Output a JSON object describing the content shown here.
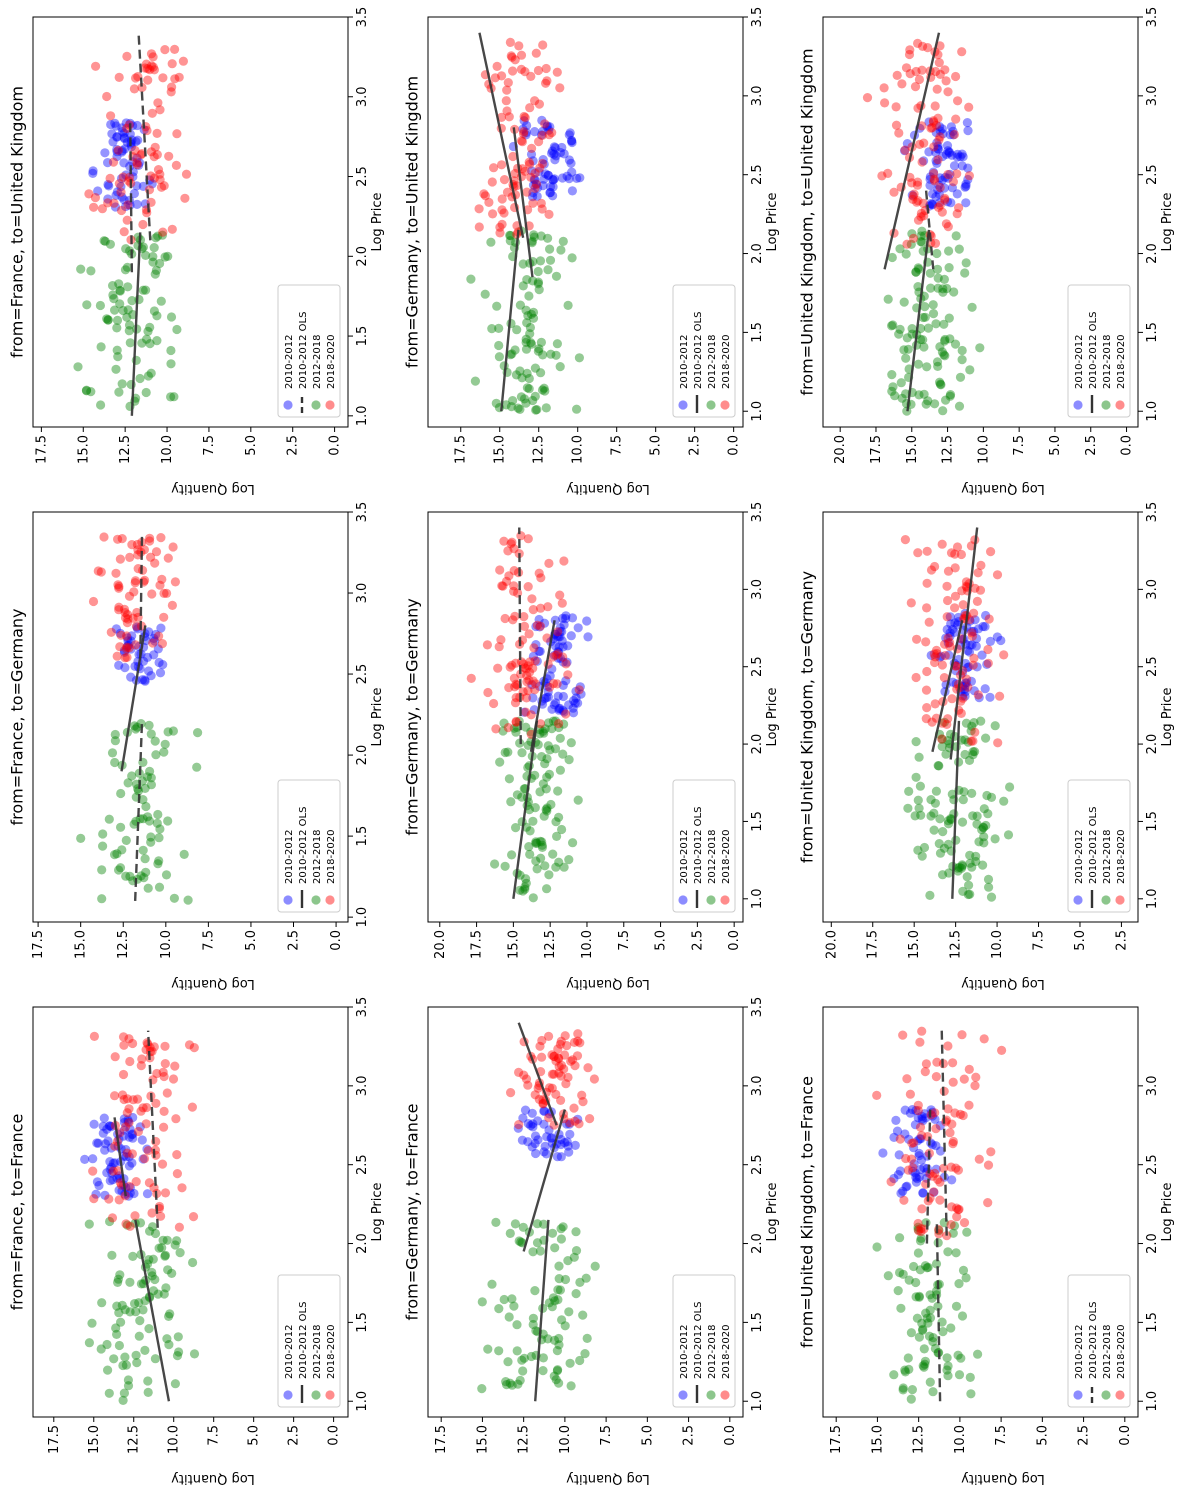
{
  "figure": {
    "rotation": "90 degrees clockwise",
    "shared": {
      "xlabel": "Log Price",
      "ylabel": "Log Quantity",
      "legend_entries": [
        "2010-2012",
        "2010-2012 OLS",
        "2012-2018",
        "2018-2020"
      ],
      "colors": {
        "2010-2012": "#0000ff",
        "2012-2018": "#008000",
        "2018-2020": "#ff0000",
        "ols": "#333333"
      }
    }
  },
  "chart_data": [
    {
      "type": "scatter",
      "title": "from=France, to=France",
      "x_ticks": [
        "1.0",
        "1.5",
        "2.0",
        "2.5",
        "3.0",
        "3.5"
      ],
      "xlim": [
        0.9,
        3.5
      ],
      "y_ticks": [
        "0.0",
        "2.5",
        "5.0",
        "7.5",
        "10.0",
        "12.5",
        "15.0",
        "17.5"
      ],
      "ylim": [
        -0.9,
        18.8
      ],
      "clusters": [
        {
          "series": "2012-2018",
          "x_range": [
            1.0,
            2.15
          ],
          "y_center": 12.0,
          "y_spread": 2.6,
          "n": 90
        },
        {
          "series": "2010-2012",
          "x_range": [
            2.3,
            2.8
          ],
          "y_center": 13.5,
          "y_spread": 1.6,
          "n": 70
        },
        {
          "series": "2018-2020",
          "x_range": [
            2.1,
            3.35
          ],
          "y_center": 12.0,
          "y_spread": 2.6,
          "n": 90
        }
      ],
      "ols": [
        {
          "style": "solid",
          "from": [
            1.0,
            10.3
          ],
          "to": [
            2.15,
            12.4
          ]
        },
        {
          "style": "solid",
          "from": [
            2.3,
            13.0
          ],
          "to": [
            2.8,
            13.7
          ]
        },
        {
          "style": "dashed",
          "from": [
            2.1,
            11.0
          ],
          "to": [
            3.35,
            11.6
          ]
        }
      ],
      "legend_line": "solid"
    },
    {
      "type": "scatter",
      "title": "from=France, to=Germany",
      "x_ticks": [
        "1.0",
        "1.5",
        "2.0",
        "2.5",
        "3.0",
        "3.5"
      ],
      "xlim": [
        0.97,
        3.5
      ],
      "y_ticks": [
        "0.0",
        "2.5",
        "5.0",
        "7.5",
        "10.0",
        "12.5",
        "15.0",
        "17.5"
      ],
      "ylim": [
        -0.7,
        17.8
      ],
      "clusters": [
        {
          "series": "2012-2018",
          "x_range": [
            1.1,
            2.2
          ],
          "y_center": 11.5,
          "y_spread": 2.4,
          "n": 80
        },
        {
          "series": "2010-2012",
          "x_range": [
            2.45,
            2.8
          ],
          "y_center": 11.5,
          "y_spread": 1.4,
          "n": 45
        },
        {
          "series": "2018-2020",
          "x_range": [
            2.6,
            3.35
          ],
          "y_center": 11.8,
          "y_spread": 2.0,
          "n": 70
        }
      ],
      "ols": [
        {
          "style": "dashed",
          "from": [
            1.1,
            11.8
          ],
          "to": [
            2.2,
            11.4
          ]
        },
        {
          "style": "solid",
          "from": [
            1.9,
            12.6
          ],
          "to": [
            2.8,
            11.2
          ]
        },
        {
          "style": "dashed",
          "from": [
            2.6,
            11.5
          ],
          "to": [
            3.35,
            11.4
          ]
        }
      ],
      "legend_line": "solid"
    },
    {
      "type": "scatter",
      "title": "from=France, to=United Kingdom",
      "x_ticks": [
        "1.0",
        "1.5",
        "2.0",
        "2.5",
        "3.0",
        "3.5"
      ],
      "xlim": [
        0.93,
        3.5
      ],
      "y_ticks": [
        "0.0",
        "2.5",
        "5.0",
        "7.5",
        "10.0",
        "12.5",
        "15.0",
        "17.5"
      ],
      "ylim": [
        -0.8,
        18.0
      ],
      "clusters": [
        {
          "series": "2012-2018",
          "x_range": [
            1.05,
            2.15
          ],
          "y_center": 11.8,
          "y_spread": 2.6,
          "n": 90
        },
        {
          "series": "2010-2012",
          "x_range": [
            2.3,
            2.85
          ],
          "y_center": 12.5,
          "y_spread": 1.4,
          "n": 65
        },
        {
          "series": "2018-2020",
          "x_range": [
            2.1,
            3.3
          ],
          "y_center": 11.5,
          "y_spread": 2.6,
          "n": 85
        }
      ],
      "ols": [
        {
          "style": "solid",
          "from": [
            1.0,
            12.1
          ],
          "to": [
            2.15,
            11.6
          ]
        },
        {
          "style": "dashed",
          "from": [
            1.9,
            12.1
          ],
          "to": [
            2.85,
            12.2
          ]
        },
        {
          "style": "dashed",
          "from": [
            2.1,
            11.0
          ],
          "to": [
            3.4,
            11.7
          ]
        }
      ],
      "legend_line": "dashed"
    },
    {
      "type": "scatter",
      "title": "from=Germany, to=France",
      "x_ticks": [
        "1.0",
        "1.5",
        "2.0",
        "2.5",
        "3.0",
        "3.5"
      ],
      "xlim": [
        0.9,
        3.5
      ],
      "y_ticks": [
        "0.0",
        "2.5",
        "5.0",
        "7.5",
        "10.0",
        "12.5",
        "15.0",
        "17.5"
      ],
      "ylim": [
        -0.8,
        18.3
      ],
      "clusters": [
        {
          "series": "2012-2018",
          "x_range": [
            1.05,
            2.15
          ],
          "y_center": 11.5,
          "y_spread": 2.6,
          "n": 90
        },
        {
          "series": "2010-2012",
          "x_range": [
            2.55,
            2.85
          ],
          "y_center": 11.0,
          "y_spread": 1.6,
          "n": 45
        },
        {
          "series": "2018-2020",
          "x_range": [
            2.75,
            3.35
          ],
          "y_center": 10.8,
          "y_spread": 2.0,
          "n": 70
        }
      ],
      "ols": [
        {
          "style": "solid",
          "from": [
            1.0,
            11.8
          ],
          "to": [
            2.15,
            11.0
          ]
        },
        {
          "style": "solid",
          "from": [
            1.95,
            12.5
          ],
          "to": [
            2.85,
            10.0
          ]
        },
        {
          "style": "solid",
          "from": [
            2.75,
            10.5
          ],
          "to": [
            3.4,
            12.8
          ]
        }
      ],
      "legend_line": "solid"
    },
    {
      "type": "scatter",
      "title": "from=Germany, to=Germany",
      "x_ticks": [
        "1.0",
        "1.5",
        "2.0",
        "2.5",
        "3.0",
        "3.5"
      ],
      "xlim": [
        0.85,
        3.5
      ],
      "y_ticks": [
        "0.0",
        "2.5",
        "5.0",
        "7.5",
        "10.0",
        "12.5",
        "15.0",
        "17.5",
        "20.0"
      ],
      "ylim": [
        -0.6,
        20.8
      ],
      "clusters": [
        {
          "series": "2012-2018",
          "x_range": [
            1.0,
            2.15
          ],
          "y_center": 13.5,
          "y_spread": 2.6,
          "n": 110
        },
        {
          "series": "2010-2012",
          "x_range": [
            2.2,
            2.85
          ],
          "y_center": 12.0,
          "y_spread": 1.8,
          "n": 80
        },
        {
          "series": "2018-2020",
          "x_range": [
            2.05,
            3.35
          ],
          "y_center": 14.0,
          "y_spread": 2.4,
          "n": 100
        }
      ],
      "ols": [
        {
          "style": "solid",
          "from": [
            1.0,
            15.0
          ],
          "to": [
            2.15,
            13.4
          ]
        },
        {
          "style": "solid",
          "from": [
            1.95,
            13.8
          ],
          "to": [
            2.8,
            12.2
          ]
        },
        {
          "style": "dashed",
          "from": [
            2.0,
            14.5
          ],
          "to": [
            3.4,
            14.6
          ]
        }
      ],
      "legend_line": "solid"
    },
    {
      "type": "scatter",
      "title": "from=Germany, to=United Kingdom",
      "x_ticks": [
        "1.0",
        "1.5",
        "2.0",
        "2.5",
        "3.0",
        "3.5"
      ],
      "xlim": [
        0.9,
        3.5
      ],
      "y_ticks": [
        "0.0",
        "2.5",
        "5.0",
        "7.5",
        "10.0",
        "12.5",
        "15.0",
        "17.5"
      ],
      "ylim": [
        -0.6,
        19.6
      ],
      "clusters": [
        {
          "series": "2012-2018",
          "x_range": [
            1.0,
            2.15
          ],
          "y_center": 13.2,
          "y_spread": 2.4,
          "n": 100
        },
        {
          "series": "2010-2012",
          "x_range": [
            2.35,
            2.85
          ],
          "y_center": 12.0,
          "y_spread": 1.6,
          "n": 65
        },
        {
          "series": "2018-2020",
          "x_range": [
            2.1,
            3.35
          ],
          "y_center": 14.0,
          "y_spread": 2.2,
          "n": 95
        }
      ],
      "ols": [
        {
          "style": "solid",
          "from": [
            1.0,
            14.9
          ],
          "to": [
            2.15,
            13.8
          ]
        },
        {
          "style": "solid",
          "from": [
            1.85,
            12.9
          ],
          "to": [
            2.8,
            14.1
          ]
        },
        {
          "style": "solid",
          "from": [
            2.1,
            13.5
          ],
          "to": [
            3.4,
            16.3
          ]
        }
      ],
      "legend_line": "solid"
    },
    {
      "type": "scatter",
      "title": "from=United Kingdom, to=France",
      "x_ticks": [
        "1.0",
        "1.5",
        "2.0",
        "2.5",
        "3.0"
      ],
      "xlim": [
        0.9,
        3.5
      ],
      "y_ticks": [
        "0.0",
        "2.5",
        "5.0",
        "7.5",
        "10.0",
        "12.5",
        "15.0",
        "17.5"
      ],
      "ylim": [
        -0.8,
        18.3
      ],
      "clusters": [
        {
          "series": "2012-2018",
          "x_range": [
            1.0,
            2.15
          ],
          "y_center": 11.5,
          "y_spread": 2.6,
          "n": 90
        },
        {
          "series": "2010-2012",
          "x_range": [
            2.3,
            2.85
          ],
          "y_center": 12.5,
          "y_spread": 1.4,
          "n": 60
        },
        {
          "series": "2018-2020",
          "x_range": [
            2.05,
            3.35
          ],
          "y_center": 11.0,
          "y_spread": 2.6,
          "n": 85
        }
      ],
      "ols": [
        {
          "style": "dashed",
          "from": [
            1.0,
            11.2
          ],
          "to": [
            2.15,
            11.4
          ]
        },
        {
          "style": "dashed",
          "from": [
            2.0,
            12.0
          ],
          "to": [
            2.85,
            11.8
          ]
        },
        {
          "style": "dashed",
          "from": [
            2.05,
            10.8
          ],
          "to": [
            3.35,
            11.1
          ]
        }
      ],
      "legend_line": "dashed"
    },
    {
      "type": "scatter",
      "title": "from=United Kingdom, to=Germany",
      "x_ticks": [
        "1.0",
        "1.5",
        "2.0",
        "2.5",
        "3.0",
        "3.5"
      ],
      "xlim": [
        0.85,
        3.5
      ],
      "y_ticks": [
        "2.5",
        "5.0",
        "7.5",
        "10.0",
        "12.5",
        "15.0",
        "17.5",
        "20.0"
      ],
      "ylim": [
        1.5,
        20.5
      ],
      "clusters": [
        {
          "series": "2012-2018",
          "x_range": [
            1.0,
            2.15
          ],
          "y_center": 12.5,
          "y_spread": 2.6,
          "n": 110
        },
        {
          "series": "2010-2012",
          "x_range": [
            2.3,
            2.85
          ],
          "y_center": 12.0,
          "y_spread": 1.6,
          "n": 70
        },
        {
          "series": "2018-2020",
          "x_range": [
            2.0,
            3.35
          ],
          "y_center": 12.5,
          "y_spread": 2.4,
          "n": 100
        }
      ],
      "ols": [
        {
          "style": "solid",
          "from": [
            1.0,
            12.7
          ],
          "to": [
            2.15,
            12.3
          ]
        },
        {
          "style": "solid",
          "from": [
            1.95,
            13.9
          ],
          "to": [
            2.8,
            12.1
          ]
        },
        {
          "style": "solid",
          "from": [
            1.9,
            12.8
          ],
          "to": [
            3.4,
            11.2
          ]
        }
      ],
      "legend_line": "solid"
    },
    {
      "type": "scatter",
      "title": "from=United Kingdom, to=United Kingdom",
      "x_ticks": [
        "1.0",
        "1.5",
        "2.0",
        "2.5",
        "3.0",
        "3.5"
      ],
      "xlim": [
        0.9,
        3.5
      ],
      "y_ticks": [
        "0.0",
        "2.5",
        "5.0",
        "7.5",
        "10.0",
        "12.5",
        "15.0",
        "17.5",
        "20.0"
      ],
      "ylim": [
        -0.8,
        21.2
      ],
      "clusters": [
        {
          "series": "2012-2018",
          "x_range": [
            1.0,
            2.15
          ],
          "y_center": 14.0,
          "y_spread": 2.6,
          "n": 110
        },
        {
          "series": "2010-2012",
          "x_range": [
            2.3,
            2.85
          ],
          "y_center": 12.8,
          "y_spread": 1.8,
          "n": 70
        },
        {
          "series": "2018-2020",
          "x_range": [
            2.05,
            3.35
          ],
          "y_center": 14.0,
          "y_spread": 2.6,
          "n": 100
        }
      ],
      "ols": [
        {
          "style": "solid",
          "from": [
            1.0,
            15.3
          ],
          "to": [
            2.15,
            13.8
          ]
        },
        {
          "style": "dashed",
          "from": [
            1.9,
            13.5
          ],
          "to": [
            2.4,
            14.0
          ]
        },
        {
          "style": "solid",
          "from": [
            1.9,
            16.9
          ],
          "to": [
            3.4,
            13.1
          ]
        }
      ],
      "legend_line": "solid"
    }
  ]
}
